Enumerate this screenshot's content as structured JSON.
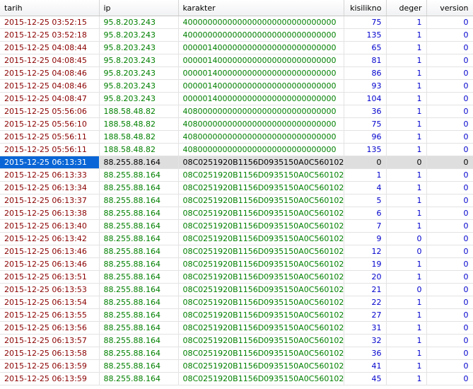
{
  "columns": [
    "tarih",
    "ip",
    "karakter",
    "kisilikno",
    "deger",
    "version"
  ],
  "rows": [
    [
      "2015-12-25 03:52:15",
      "95.8.203.243",
      "4000000000000000000000000000000",
      "75",
      "1",
      "0"
    ],
    [
      "2015-12-25 03:52:18",
      "95.8.203.243",
      "4000000000000000000000000000000",
      "135",
      "1",
      "0"
    ],
    [
      "2015-12-25 04:08:44",
      "95.8.203.243",
      "0000014000000000000000000000000",
      "65",
      "1",
      "0"
    ],
    [
      "2015-12-25 04:08:45",
      "95.8.203.243",
      "0000014000000000000000000000000",
      "81",
      "1",
      "0"
    ],
    [
      "2015-12-25 04:08:46",
      "95.8.203.243",
      "0000014000000000000000000000000",
      "86",
      "1",
      "0"
    ],
    [
      "2015-12-25 04:08:46",
      "95.8.203.243",
      "0000014000000000000000000000000",
      "93",
      "1",
      "0"
    ],
    [
      "2015-12-25 04:08:47",
      "95.8.203.243",
      "0000014000000000000000000000000",
      "104",
      "1",
      "0"
    ],
    [
      "2015-12-25 05:56:06",
      "188.58.48.82",
      "4080000000000000000000000000000",
      "36",
      "1",
      "0"
    ],
    [
      "2015-12-25 05:56:10",
      "188.58.48.82",
      "4080000000000000000000000000000",
      "75",
      "1",
      "0"
    ],
    [
      "2015-12-25 05:56:11",
      "188.58.48.82",
      "4080000000000000000000000000000",
      "96",
      "1",
      "0"
    ],
    [
      "2015-12-25 05:56:11",
      "188.58.48.82",
      "4080000000000000000000000000000",
      "135",
      "1",
      "0"
    ],
    [
      "2015-12-25 06:13:31",
      "88.255.88.164",
      "08C0251920B1156D0935150A0C560102",
      "0",
      "0",
      "0"
    ],
    [
      "2015-12-25 06:13:33",
      "88.255.88.164",
      "08C0251920B1156D0935150A0C560102",
      "1",
      "1",
      "0"
    ],
    [
      "2015-12-25 06:13:34",
      "88.255.88.164",
      "08C0251920B1156D0935150A0C560102",
      "4",
      "1",
      "0"
    ],
    [
      "2015-12-25 06:13:37",
      "88.255.88.164",
      "08C0251920B1156D0935150A0C560102",
      "5",
      "1",
      "0"
    ],
    [
      "2015-12-25 06:13:38",
      "88.255.88.164",
      "08C0251920B1156D0935150A0C560102",
      "6",
      "1",
      "0"
    ],
    [
      "2015-12-25 06:13:40",
      "88.255.88.164",
      "08C0251920B1156D0935150A0C560102",
      "7",
      "1",
      "0"
    ],
    [
      "2015-12-25 06:13:42",
      "88.255.88.164",
      "08C0251920B1156D0935150A0C560102",
      "9",
      "0",
      "0"
    ],
    [
      "2015-12-25 06:13:46",
      "88.255.88.164",
      "08C0251920B1156D0935150A0C560102",
      "12",
      "0",
      "0"
    ],
    [
      "2015-12-25 06:13:46",
      "88.255.88.164",
      "08C0251920B1156D0935150A0C560102",
      "19",
      "1",
      "0"
    ],
    [
      "2015-12-25 06:13:51",
      "88.255.88.164",
      "08C0251920B1156D0935150A0C560102",
      "20",
      "1",
      "0"
    ],
    [
      "2015-12-25 06:13:53",
      "88.255.88.164",
      "08C0251920B1156D0935150A0C560102",
      "21",
      "0",
      "0"
    ],
    [
      "2015-12-25 06:13:54",
      "88.255.88.164",
      "08C0251920B1156D0935150A0C560102",
      "22",
      "1",
      "0"
    ],
    [
      "2015-12-25 06:13:55",
      "88.255.88.164",
      "08C0251920B1156D0935150A0C560102",
      "27",
      "1",
      "0"
    ],
    [
      "2015-12-25 06:13:56",
      "88.255.88.164",
      "08C0251920B1156D0935150A0C560102",
      "31",
      "1",
      "0"
    ],
    [
      "2015-12-25 06:13:57",
      "88.255.88.164",
      "08C0251920B1156D0935150A0C560102",
      "32",
      "1",
      "0"
    ],
    [
      "2015-12-25 06:13:58",
      "88.255.88.164",
      "08C0251920B1156D0935150A0C560102",
      "36",
      "1",
      "0"
    ],
    [
      "2015-12-25 06:13:59",
      "88.255.88.164",
      "08C0251920B1156D0935150A0C560102",
      "41",
      "1",
      "0"
    ],
    [
      "2015-12-25 06:13:59",
      "88.255.88.164",
      "08C0251920B1156D0935150A0C560102",
      "45",
      "1",
      "0"
    ]
  ],
  "selected_row": 11,
  "colors": {
    "date": "#8b0000",
    "text": "#008000",
    "number": "#0000cd",
    "selection": "#0a66d6",
    "selected_row_bg": "#dedede"
  }
}
